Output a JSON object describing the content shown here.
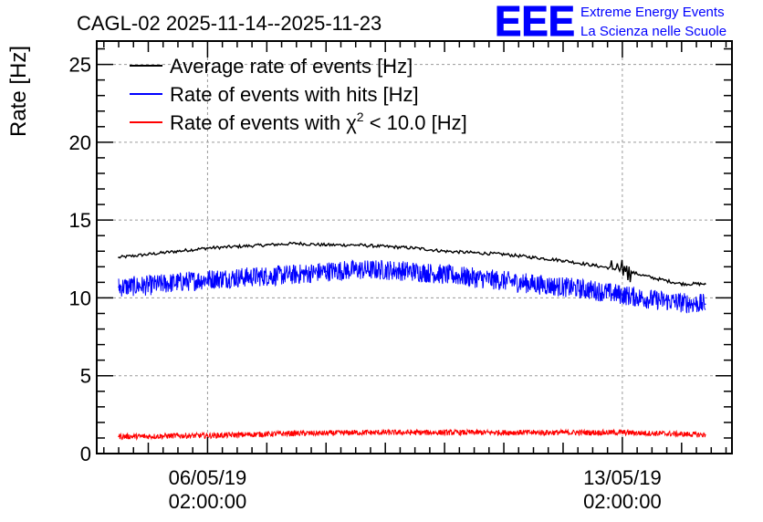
{
  "chart_data": {
    "type": "line",
    "title": "CAGL-02 2025-11-14--2025-11-23",
    "xlabel": "",
    "ylabel": "Rate [Hz]",
    "ylim": [
      0,
      26.5
    ],
    "xlim_days": [
      -1.87,
      8.85
    ],
    "grid": true,
    "y_ticks": [
      0,
      5,
      10,
      15,
      20,
      25
    ],
    "x_ticks": [
      {
        "value": 0,
        "date": "06/05/19",
        "time": "02:00:00"
      },
      {
        "value": 7,
        "date": "13/05/19",
        "time": "02:00:00"
      }
    ],
    "legend_position": "top-left",
    "series": [
      {
        "name": "Average rate of events [Hz]",
        "color": "#000000",
        "x": [
          -1.5,
          -1.0,
          -0.5,
          0.0,
          0.5,
          1.0,
          1.5,
          2.0,
          2.5,
          3.0,
          3.5,
          4.0,
          4.5,
          5.0,
          5.5,
          6.0,
          6.5,
          7.0,
          7.5,
          8.0,
          8.4
        ],
        "values": [
          12.6,
          12.8,
          13.0,
          13.2,
          13.3,
          13.4,
          13.5,
          13.4,
          13.4,
          13.3,
          13.2,
          13.0,
          12.9,
          12.8,
          12.6,
          12.4,
          12.1,
          11.8,
          11.3,
          10.9,
          10.9
        ]
      },
      {
        "name": "Rate of events with hits [Hz]",
        "color": "#0000ff",
        "x": [
          -1.5,
          -1.0,
          -0.5,
          0.0,
          0.5,
          1.0,
          1.5,
          2.0,
          2.5,
          3.0,
          3.5,
          4.0,
          4.5,
          5.0,
          5.5,
          6.0,
          6.5,
          7.0,
          7.5,
          8.0,
          8.4
        ],
        "values": [
          10.7,
          10.8,
          11.0,
          11.2,
          11.3,
          11.4,
          11.5,
          11.7,
          11.8,
          11.8,
          11.7,
          11.5,
          11.3,
          11.1,
          10.9,
          10.7,
          10.5,
          10.2,
          9.9,
          9.7,
          9.6
        ]
      },
      {
        "name": "Rate of events with χ² < 10.0 [Hz]",
        "color": "#ff0000",
        "x": [
          -1.5,
          -1.0,
          -0.5,
          0.0,
          0.5,
          1.0,
          1.5,
          2.0,
          2.5,
          3.0,
          3.5,
          4.0,
          4.5,
          5.0,
          5.5,
          6.0,
          6.5,
          7.0,
          7.5,
          8.0,
          8.4
        ],
        "values": [
          1.1,
          1.1,
          1.15,
          1.15,
          1.2,
          1.25,
          1.3,
          1.3,
          1.35,
          1.35,
          1.35,
          1.35,
          1.35,
          1.35,
          1.35,
          1.35,
          1.35,
          1.35,
          1.3,
          1.25,
          1.2
        ]
      }
    ],
    "legend": {
      "avg_text": "Average rate of events [Hz]",
      "hits_text": "Rate of events with hits [Hz]",
      "chi_prefix": "Rate of events with ",
      "chi_symbol": "χ",
      "chi_sup": "2",
      "chi_suffix": " < 10.0 [Hz]"
    }
  },
  "brand": {
    "logo": "EEE",
    "line1": "Extreme Energy Events",
    "line2": "La Scienza nelle Scuole",
    "color": "#0000ff"
  }
}
